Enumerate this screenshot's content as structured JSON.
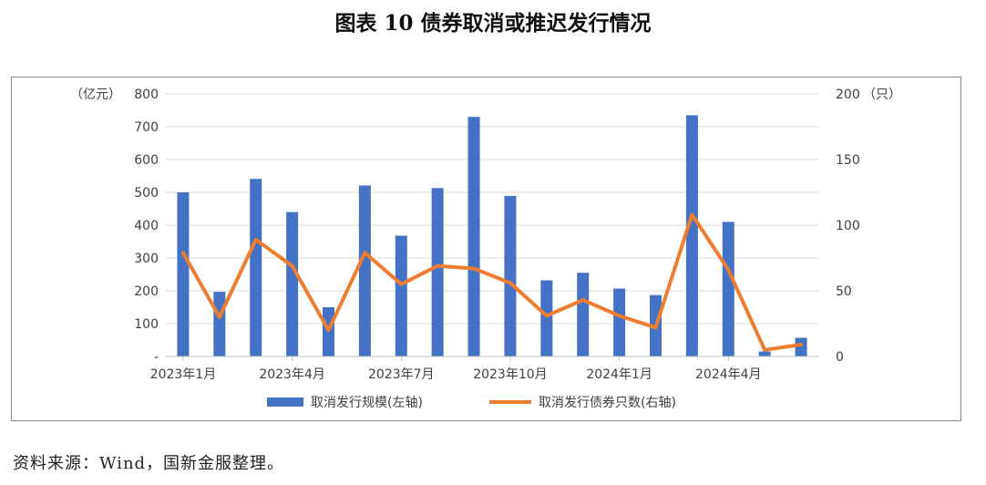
{
  "title": "图表 10  债券取消或推迟发行情况",
  "source": "资料来源：Wind，国新金服整理。",
  "colors": {
    "bar": "#4472c4",
    "line": "#ed7d31",
    "grid": "#d9d9d9",
    "text": "#404040"
  },
  "chart_data": {
    "type": "bar+line",
    "categories": [
      "2023-01",
      "2023-02",
      "2023-03",
      "2023-04",
      "2023-05",
      "2023-06",
      "2023-07",
      "2023-08",
      "2023-09",
      "2023-10",
      "2023-11",
      "2023-12",
      "2024-01",
      "2024-02",
      "2024-03",
      "2024-04",
      "2024-05",
      "2024-06"
    ],
    "x_tick_labels": [
      {
        "index": 0,
        "label": "2023年1月"
      },
      {
        "index": 3,
        "label": "2023年4月"
      },
      {
        "index": 6,
        "label": "2023年7月"
      },
      {
        "index": 9,
        "label": "2023年10月"
      },
      {
        "index": 12,
        "label": "2024年1月"
      },
      {
        "index": 15,
        "label": "2024年4月"
      }
    ],
    "left_axis": {
      "unit_label": "（亿元）",
      "ylim": [
        0,
        800
      ],
      "ticks": [
        0,
        100,
        200,
        300,
        400,
        500,
        600,
        700,
        800
      ],
      "tick_labels": [
        "-",
        "100",
        "200",
        "300",
        "400",
        "500",
        "600",
        "700",
        "800"
      ]
    },
    "right_axis": {
      "unit_label": "（只）",
      "ylim": [
        0,
        200
      ],
      "ticks": [
        0,
        50,
        100,
        150,
        200
      ],
      "tick_labels": [
        "0",
        "50",
        "100",
        "150",
        "200"
      ]
    },
    "series": [
      {
        "name": "取消发行规模(左轴)",
        "type": "bar",
        "axis": "left",
        "values": [
          500,
          197,
          541,
          440,
          150,
          521,
          368,
          513,
          730,
          489,
          232,
          255,
          207,
          187,
          735,
          410,
          15,
          57
        ]
      },
      {
        "name": "取消发行债券只数(右轴)",
        "type": "line",
        "axis": "right",
        "values": [
          79,
          30,
          89,
          69,
          20,
          79,
          55,
          69,
          67,
          56,
          31,
          43,
          31,
          22,
          108,
          66,
          5,
          9
        ]
      }
    ],
    "legend_position": "bottom",
    "grid": true
  }
}
